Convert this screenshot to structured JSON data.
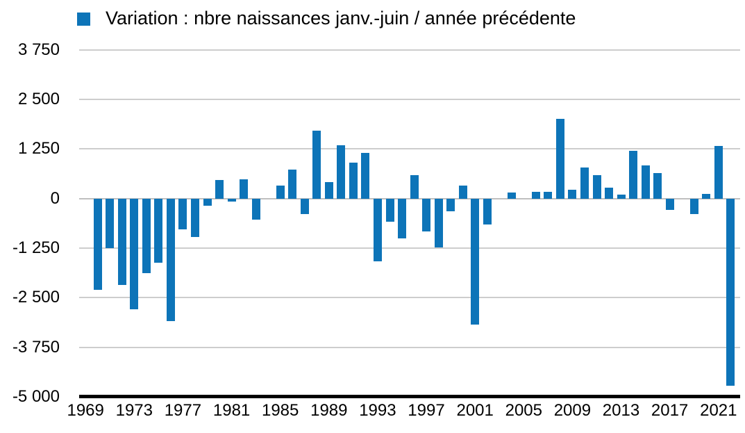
{
  "legend": {
    "label": "Variation : nbre naissances janv.-juin / année précédente"
  },
  "colors": {
    "bar": "#0d74b8",
    "gridline": "#cdcdcd",
    "zero_line": "#bfbfbf",
    "axis": "#000000",
    "background": "#ffffff",
    "text": "#000000"
  },
  "chart_data": {
    "type": "bar",
    "title": "Variation : nbre naissances janv.-juin / année précédente",
    "legend_position": "top",
    "grid": true,
    "ylim": [
      -5000,
      3750
    ],
    "x": [
      1969,
      1970,
      1971,
      1972,
      1973,
      1974,
      1975,
      1976,
      1977,
      1978,
      1979,
      1980,
      1981,
      1982,
      1983,
      1984,
      1985,
      1986,
      1987,
      1988,
      1989,
      1990,
      1991,
      1992,
      1993,
      1994,
      1995,
      1996,
      1997,
      1998,
      1999,
      2000,
      2001,
      2002,
      2003,
      2004,
      2005,
      2006,
      2007,
      2008,
      2009,
      2010,
      2011,
      2012,
      2013,
      2014,
      2015,
      2016,
      2017,
      2018,
      2019,
      2020,
      2021,
      2022
    ],
    "series": [
      {
        "name": "Variation : nbre naissances janv.-juin / année précédente",
        "values": [
          0,
          -2300,
          -1250,
          -2180,
          -2790,
          -1880,
          -1620,
          -3100,
          -770,
          -970,
          -175,
          470,
          -70,
          480,
          -525,
          0,
          335,
          725,
          -395,
          1720,
          420,
          1340,
          905,
          1150,
          -1580,
          -585,
          -1010,
          590,
          -830,
          -1240,
          -325,
          335,
          -3180,
          -650,
          0,
          160,
          0,
          165,
          170,
          2015,
          230,
          790,
          585,
          275,
          100,
          1210,
          830,
          650,
          -290,
          0,
          -395,
          110,
          1325,
          -4730
        ]
      }
    ],
    "yticks": [
      {
        "value": 3750,
        "label": "3 750"
      },
      {
        "value": 2500,
        "label": "2 500"
      },
      {
        "value": 1250,
        "label": "1 250"
      },
      {
        "value": 0,
        "label": "0"
      },
      {
        "value": -1250,
        "label": "-1 250"
      },
      {
        "value": -2500,
        "label": "-2 500"
      },
      {
        "value": -3750,
        "label": "-3 750"
      },
      {
        "value": -5000,
        "label": "-5 000"
      }
    ],
    "xtick_labels": [
      "1969",
      "1973",
      "1977",
      "1981",
      "1985",
      "1989",
      "1993",
      "1997",
      "2001",
      "2005",
      "2009",
      "2013",
      "2017",
      "2021"
    ]
  }
}
